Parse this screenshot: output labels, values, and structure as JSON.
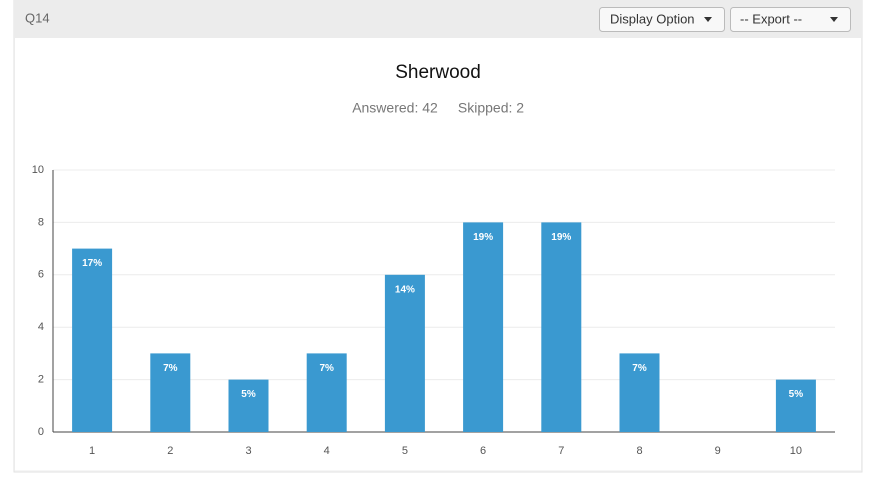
{
  "header": {
    "question": "Q14",
    "display_option": "Display Option",
    "export": "-- Export --"
  },
  "chart_data": {
    "type": "bar",
    "title": "Sherwood",
    "answered": "Answered: 42",
    "skipped": "Skipped: 2",
    "categories": [
      "1",
      "2",
      "3",
      "4",
      "5",
      "6",
      "7",
      "8",
      "9",
      "10"
    ],
    "values": [
      7,
      3,
      2,
      3,
      6,
      8,
      8,
      3,
      0,
      2
    ],
    "percent_labels": [
      "17%",
      "7%",
      "5%",
      "7%",
      "14%",
      "19%",
      "19%",
      "7%",
      null,
      "5%"
    ],
    "color": "#3a99d0",
    "ylim": [
      0,
      10
    ],
    "yticks": [
      0,
      2,
      4,
      6,
      8,
      10
    ],
    "grid": true
  }
}
